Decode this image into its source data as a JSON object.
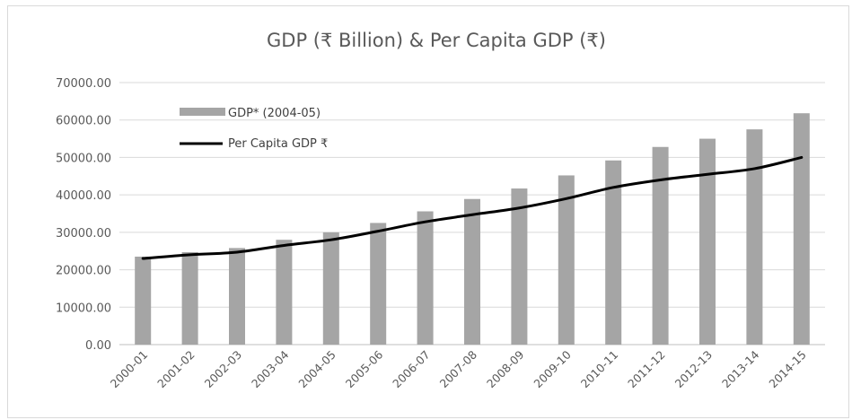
{
  "chart_data": {
    "type": "bar",
    "title": "GDP (₹ Billion) & Per Capita GDP (₹)",
    "xlabel": "",
    "ylabel": "",
    "ylim": [
      0,
      70000
    ],
    "ytick_labels": [
      "0.00",
      "10000.00",
      "20000.00",
      "30000.00",
      "40000.00",
      "50000.00",
      "60000.00",
      "70000.00"
    ],
    "ytick_values": [
      0,
      10000,
      20000,
      30000,
      40000,
      50000,
      60000,
      70000
    ],
    "categories": [
      "2000-01",
      "2001-02",
      "2002-03",
      "2003-04",
      "2004-05",
      "2005-06",
      "2006-07",
      "2007-08",
      "2008-09",
      "2009-10",
      "2010-11",
      "2011-12",
      "2012-13",
      "2013-14",
      "2014-15"
    ],
    "grid": true,
    "legend_position": "top-left",
    "series": [
      {
        "name": "GDP* (2004-05)",
        "type": "bar",
        "color": "#a5a5a5",
        "values": [
          23500,
          24700,
          25800,
          28000,
          30000,
          32500,
          35600,
          38900,
          41700,
          45200,
          49200,
          52800,
          55000,
          57500,
          61800
        ]
      },
      {
        "name": "Per Capita GDP ₹",
        "type": "line",
        "color": "#000000",
        "values": [
          23000,
          24000,
          24700,
          26500,
          28000,
          30300,
          32800,
          34700,
          36500,
          39000,
          42000,
          44000,
          45500,
          47000,
          50000
        ]
      }
    ]
  }
}
